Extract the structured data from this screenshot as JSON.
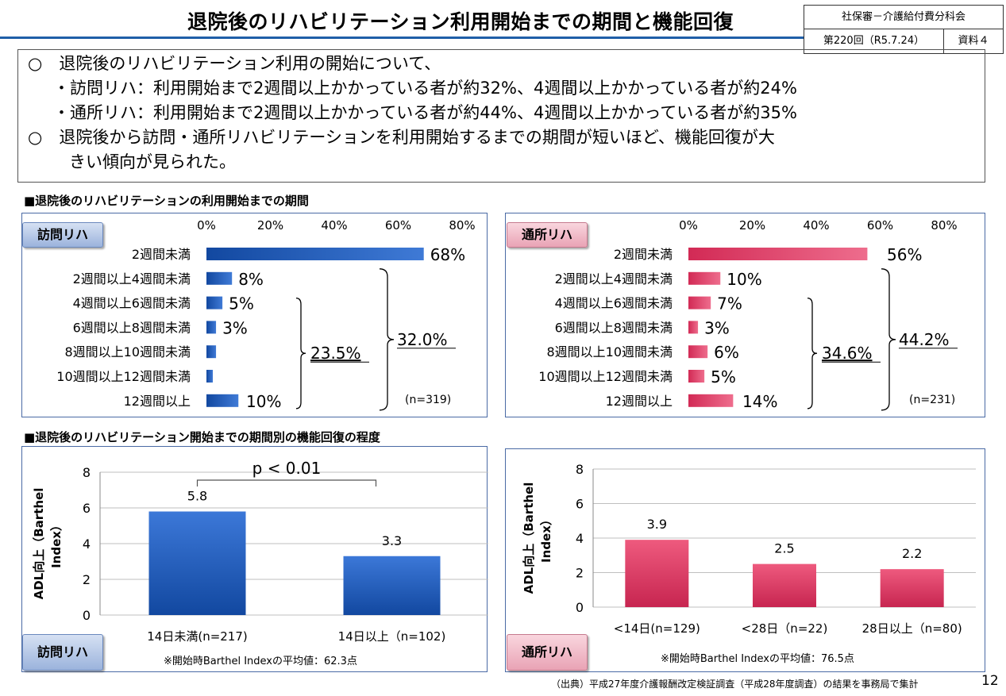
{
  "header": {
    "title": "退院後のリハビリテーション利用開始までの期間と機能回復",
    "meta_top": "社保審－介護給付費分科会",
    "meta_session": "第220回（R5.7.24）",
    "meta_doc": "資料４"
  },
  "summary": [
    {
      "text": "○　退院後のリハビリテーション利用の開始について、"
    },
    {
      "text": "・訪問リハ：利用開始まで2週間以上かかっている者が約32%、4週間以上かかっている者が約24%"
    },
    {
      "text": "・通所リハ：利用開始まで2週間以上かかっている者が約44%、4週間以上かかっている者が約35%"
    },
    {
      "text": "○　退院後から訪問・通所リハビリテーションを利用開始するまでの期間が短いほど、機能回復が大"
    },
    {
      "text": "きい傾向が見られた。"
    }
  ],
  "section1": "■退院後のリハビリテーションの利用開始までの期間",
  "section2": "■退院後のリハビリテーション開始までの期間別の機能回復の程度",
  "footer": {
    "source": "（出典）平成27年度介護報酬改定検証調査（平成28年度調査）の結果を事務局で集計",
    "page": "12"
  },
  "colors": {
    "blue": "#1a56b0",
    "pink": "#d9385e"
  },
  "chart_data": [
    {
      "type": "bar",
      "orientation": "horizontal",
      "tag": "訪問リハ",
      "categories": [
        "2週間未満",
        "2週間以上4週間未満",
        "4週間以上6週間未満",
        "6週間以上8週間未満",
        "8週間以上10週間未満",
        "10週間以上12週間未満",
        "12週間以上"
      ],
      "values": [
        68,
        8,
        5,
        3,
        3,
        2,
        10
      ],
      "labels": [
        "68%",
        "8%",
        "5%",
        "3%",
        "",
        "",
        "10%"
      ],
      "xlim": [
        0,
        80
      ],
      "ticks": [
        "0%",
        "20%",
        "40%",
        "60%",
        "80%"
      ],
      "bracket_inner": "23.5%",
      "bracket_outer": "32.0%",
      "n": "(n=319)"
    },
    {
      "type": "bar",
      "orientation": "horizontal",
      "tag": "通所リハ",
      "categories": [
        "2週間未満",
        "2週間以上4週間未満",
        "4週間以上6週間未満",
        "6週間以上8週間未満",
        "8週間以上10週間未満",
        "10週間以上12週間未満",
        "12週間以上"
      ],
      "values": [
        56,
        10,
        7,
        3,
        6,
        5,
        14
      ],
      "labels": [
        "56%",
        "10%",
        "7%",
        "3%",
        "6%",
        "5%",
        "14%"
      ],
      "xlim": [
        0,
        80
      ],
      "ticks": [
        "0%",
        "20%",
        "40%",
        "60%",
        "80%"
      ],
      "bracket_inner": "34.6%",
      "bracket_outer": "44.2%",
      "n": "(n=231)"
    },
    {
      "type": "bar",
      "tag": "訪問リハ",
      "categories": [
        "14日未満(n=217)",
        "14日以上（n=102)"
      ],
      "values": [
        5.8,
        3.3
      ],
      "labels": [
        "5.8",
        "3.3"
      ],
      "ylim": [
        0,
        8
      ],
      "yticks": [
        "0",
        "2",
        "4",
        "6",
        "8"
      ],
      "ylabel": "ADL向上（Barthel Index）",
      "significance": "p < 0.01",
      "note": "※開始時Barthel Indexの平均値：62.3点"
    },
    {
      "type": "bar",
      "tag": "通所リハ",
      "categories": [
        "<14日(n=129)",
        "<28日（n=22)",
        "28日以上（n=80)"
      ],
      "values": [
        3.9,
        2.5,
        2.2
      ],
      "labels": [
        "3.9",
        "2.5",
        "2.2"
      ],
      "ylim": [
        0,
        8
      ],
      "yticks": [
        "0",
        "2",
        "4",
        "6",
        "8"
      ],
      "ylabel": "ADL向上（Barthel Index）",
      "note": "※開始時Barthel Indexの平均値：76.5点"
    }
  ]
}
